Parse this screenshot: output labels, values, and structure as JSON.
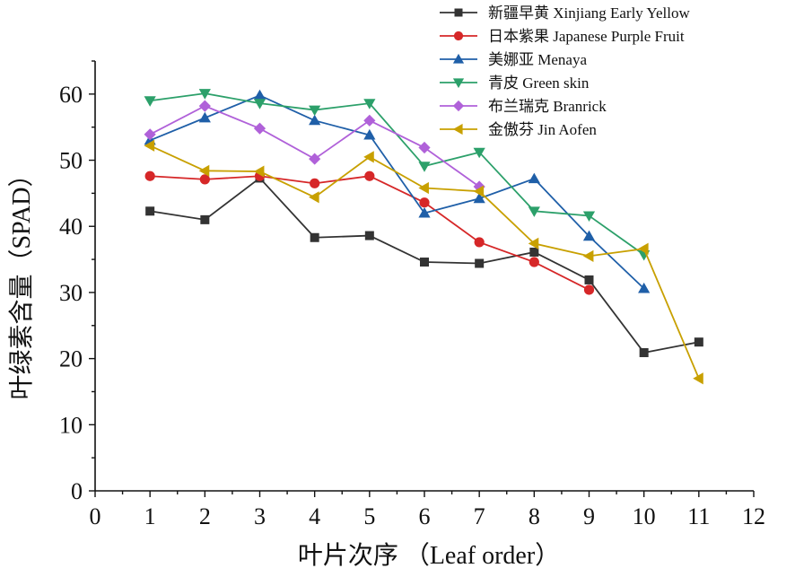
{
  "chart_data": {
    "type": "line",
    "xlabel": "叶片次序 （Leaf order）",
    "ylabel": "叶绿素含量（SPAD）",
    "xlim": [
      0,
      12
    ],
    "ylim": [
      0,
      65
    ],
    "xticks": [
      0,
      1,
      2,
      3,
      4,
      5,
      6,
      7,
      8,
      9,
      10,
      11,
      12
    ],
    "yticks": [
      0,
      10,
      20,
      30,
      40,
      50,
      60
    ],
    "grid": false,
    "legend_position": "top-right",
    "series": [
      {
        "name": "新疆早黄 Xinjiang Early Yellow",
        "color": "#333333",
        "marker": "square",
        "x": [
          1,
          2,
          3,
          4,
          5,
          6,
          7,
          8,
          9,
          10,
          11
        ],
        "y": [
          42.3,
          41.0,
          47.3,
          38.3,
          38.6,
          34.6,
          34.4,
          36.1,
          31.9,
          20.9,
          22.5
        ]
      },
      {
        "name": "日本紫果 Japanese Purple Fruit",
        "color": "#d62728",
        "marker": "circle",
        "x": [
          1,
          2,
          3,
          4,
          5,
          6,
          7,
          8,
          9
        ],
        "y": [
          47.6,
          47.1,
          47.6,
          46.5,
          47.6,
          43.6,
          37.6,
          34.6,
          30.4
        ]
      },
      {
        "name": "美娜亚 Menaya",
        "color": "#1f5fa8",
        "marker": "triangle-up",
        "x": [
          1,
          2,
          3,
          4,
          5,
          6,
          7,
          8,
          9,
          10
        ],
        "y": [
          53.0,
          56.4,
          59.8,
          56.0,
          53.8,
          42.0,
          44.2,
          47.2,
          38.5,
          30.6
        ]
      },
      {
        "name": "青皮 Green skin",
        "color": "#2ca06a",
        "marker": "triangle-down",
        "x": [
          1,
          2,
          3,
          4,
          5,
          6,
          7,
          8,
          9,
          10
        ],
        "y": [
          59.0,
          60.1,
          58.6,
          57.6,
          58.6,
          49.1,
          51.2,
          42.3,
          41.6,
          35.7
        ]
      },
      {
        "name": "布兰瑞克 Branrick",
        "color": "#b061d9",
        "marker": "diamond",
        "x": [
          1,
          2,
          3,
          4,
          5,
          6,
          7
        ],
        "y": [
          53.9,
          58.2,
          54.8,
          50.2,
          56.0,
          51.9,
          46.0
        ]
      },
      {
        "name": "金傲芬 Jin Aofen",
        "color": "#c8a000",
        "marker": "triangle-left",
        "x": [
          1,
          2,
          3,
          4,
          5,
          6,
          7,
          8,
          9,
          10,
          11
        ],
        "y": [
          52.2,
          48.4,
          48.3,
          44.4,
          50.5,
          45.8,
          45.3,
          37.4,
          35.5,
          36.6,
          17.0
        ]
      }
    ]
  }
}
